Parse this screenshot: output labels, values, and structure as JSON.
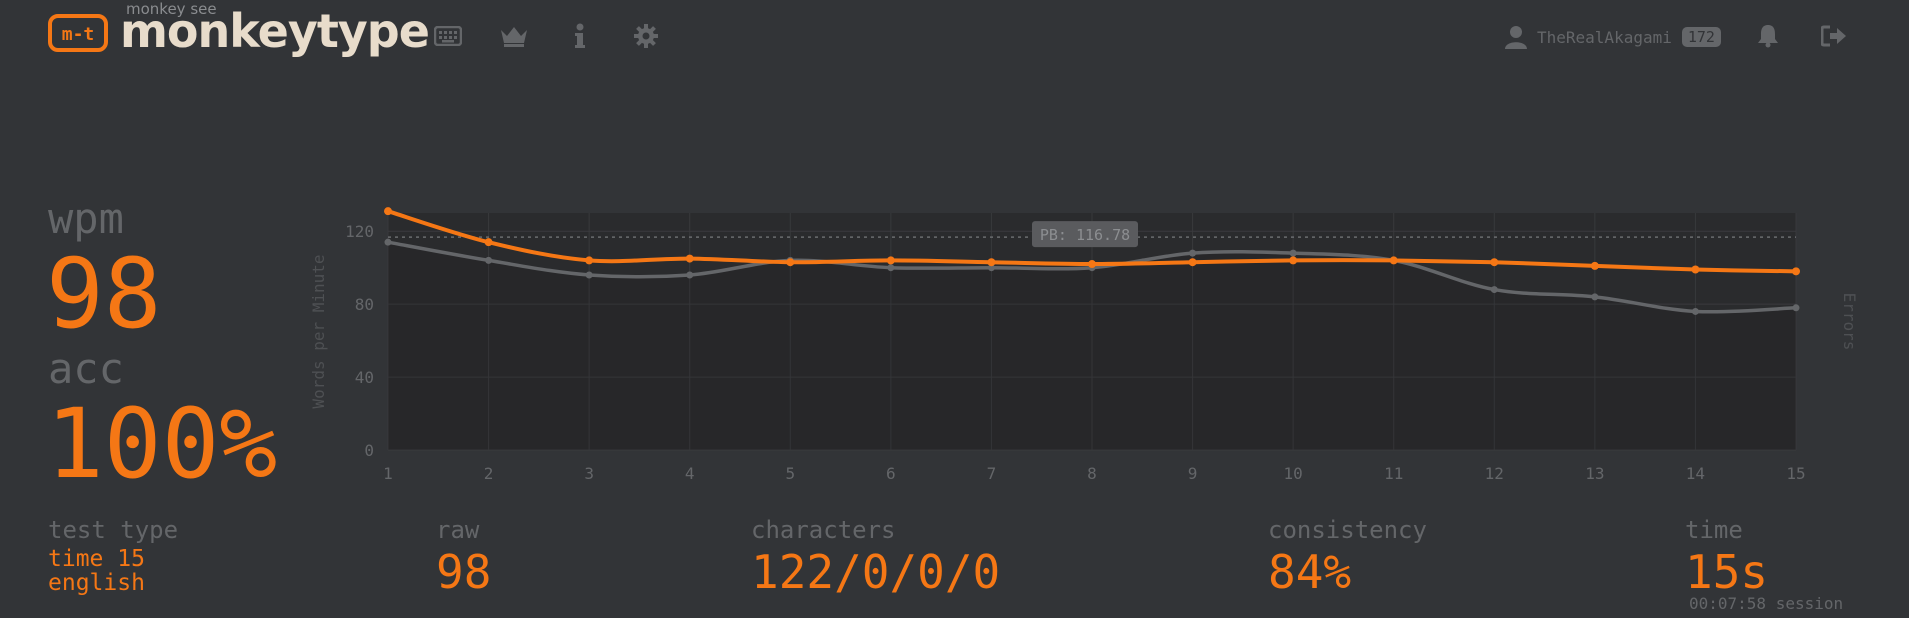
{
  "header": {
    "logo_sub": "monkey see",
    "logo_text": "monkeytype",
    "logo_mark": "m-t",
    "nav": [
      {
        "icon": "keyboard-icon"
      },
      {
        "icon": "crown-icon"
      },
      {
        "icon": "info-icon"
      },
      {
        "icon": "gear-icon"
      }
    ],
    "user": {
      "name": "TheRealAkagami",
      "level": "172"
    },
    "actions": [
      {
        "icon": "bell-icon"
      },
      {
        "icon": "sign-out-icon"
      }
    ]
  },
  "results": {
    "wpm_label": "wpm",
    "wpm_value": "98",
    "acc_label": "acc",
    "acc_value": "100%",
    "test_type_label": "test type",
    "test_type_lines": [
      "time 15",
      "english"
    ],
    "raw_label": "raw",
    "raw_value": "98",
    "characters_label": "characters",
    "characters_value": "122/0/0/0",
    "consistency_label": "consistency",
    "consistency_value": "84%",
    "time_label": "time",
    "time_value": "15s",
    "session_text": "00:07:58 session"
  },
  "colors": {
    "background": "#323437",
    "accent": "#f57715",
    "sub": "#646669",
    "raw_line": "#646669",
    "text": "#e8dccb"
  },
  "chart_data": {
    "type": "line",
    "x": [
      1,
      2,
      3,
      4,
      5,
      6,
      7,
      8,
      9,
      10,
      11,
      12,
      13,
      14,
      15
    ],
    "ylim": [
      0,
      130
    ],
    "yticks": [
      0,
      40,
      80,
      120
    ],
    "ylabel": "Words per Minute",
    "y2label": "Errors",
    "grid": true,
    "pb_line": {
      "value": 116.78,
      "label": "PB: 116.78"
    },
    "series": [
      {
        "name": "wpm",
        "color": "#f57715",
        "values": [
          131,
          114,
          104,
          105,
          103,
          104,
          103,
          102,
          103,
          104,
          104,
          103,
          101,
          99,
          98
        ]
      },
      {
        "name": "raw",
        "color": "#646669",
        "values": [
          114,
          104,
          96,
          96,
          104,
          100,
          100,
          100,
          108,
          108,
          104,
          88,
          84,
          76,
          78
        ]
      }
    ]
  }
}
